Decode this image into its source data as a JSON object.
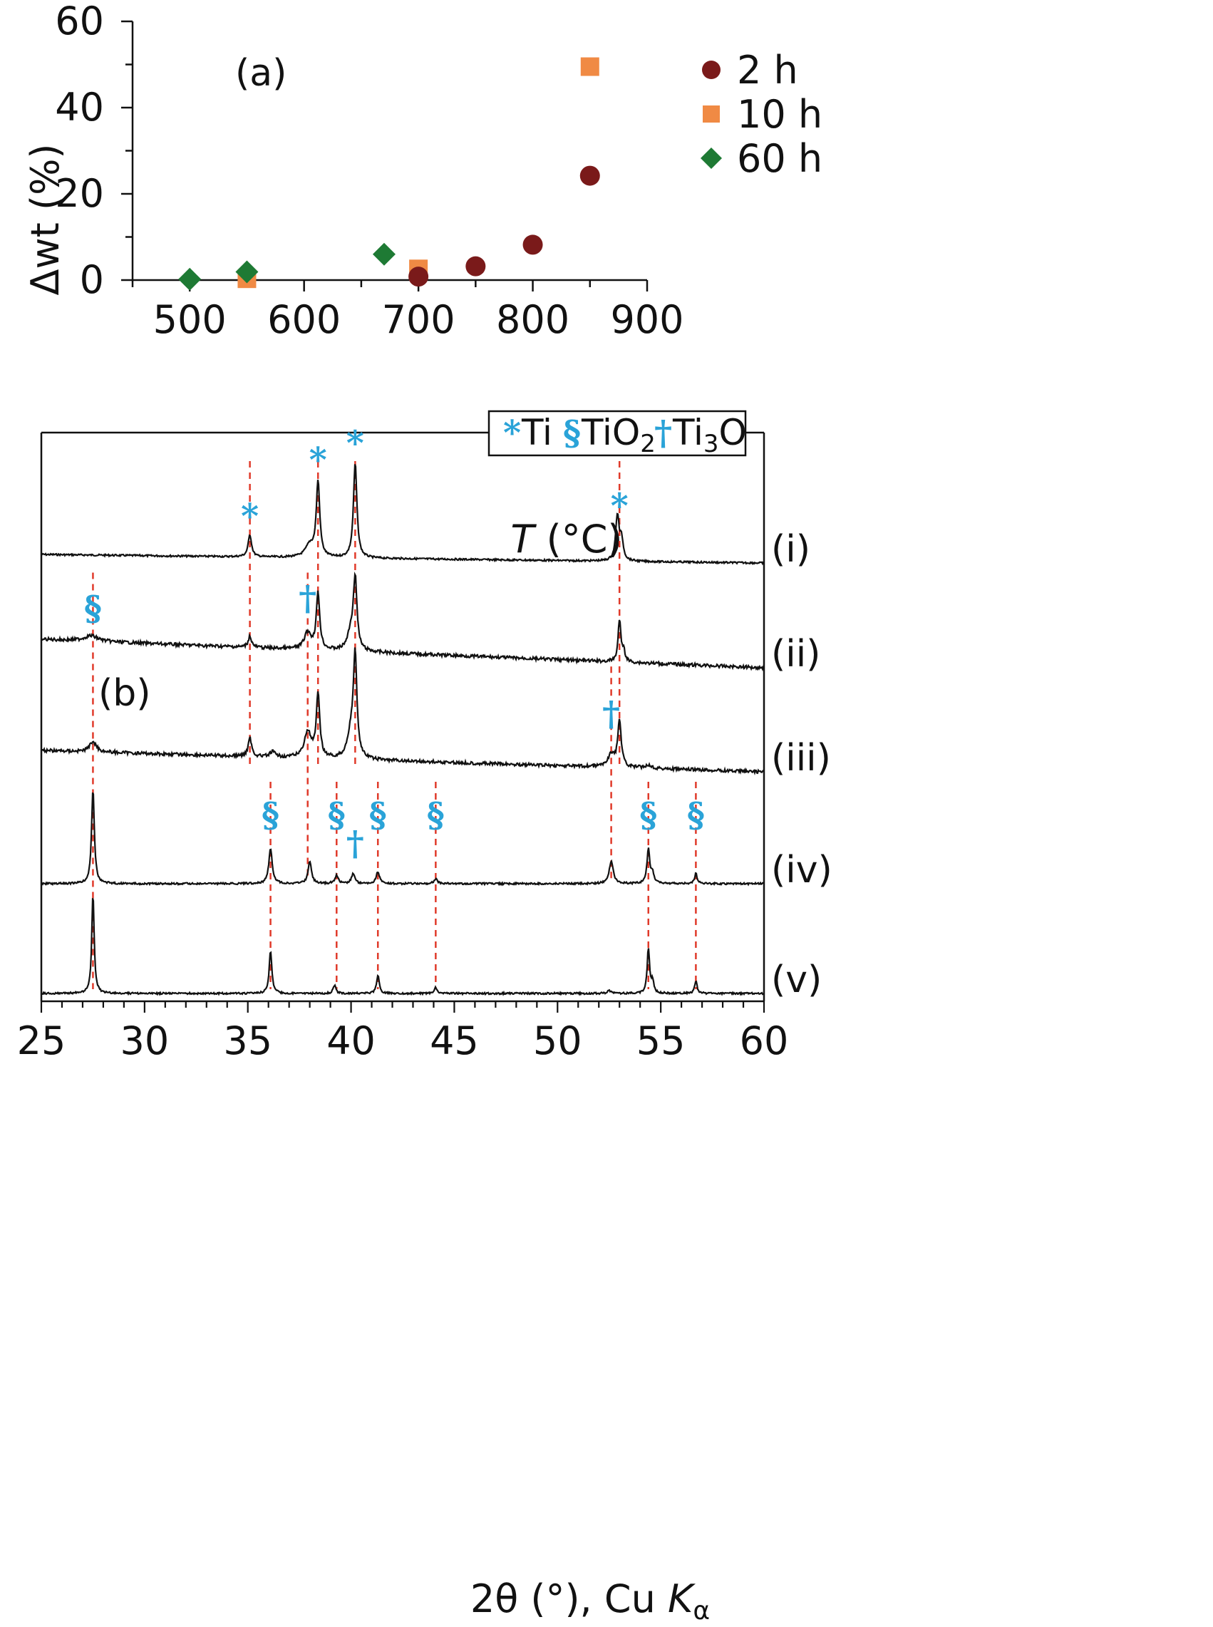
{
  "chart_data": [
    {
      "type": "scatter",
      "panel_label": "(a)",
      "xlabel": "T (°C)",
      "xlabel_var": "T",
      "xlabel_unit": " (°C)",
      "ylabel": "Δwt (%)",
      "xlim": [
        450,
        900
      ],
      "ylim": [
        0,
        60
      ],
      "xticks": [
        500,
        600,
        700,
        800,
        900
      ],
      "yticks": [
        0,
        20,
        40,
        60
      ],
      "legend_position": "right",
      "series": [
        {
          "name": "2 h",
          "marker": "circle",
          "color": "#7a1a1a",
          "points": [
            [
              700,
              0.8
            ],
            [
              750,
              3.2
            ],
            [
              800,
              8.2
            ],
            [
              850,
              24.2
            ]
          ]
        },
        {
          "name": "10 h",
          "marker": "square",
          "color": "#f08a44",
          "points": [
            [
              550,
              0.3
            ],
            [
              700,
              2.6
            ],
            [
              850,
              49.5
            ]
          ]
        },
        {
          "name": "60 h",
          "marker": "diamond",
          "color": "#1e7a34",
          "points": [
            [
              500,
              0.2
            ],
            [
              550,
              1.9
            ],
            [
              670,
              6.0
            ]
          ]
        }
      ]
    },
    {
      "type": "line",
      "panel_label": "(b)",
      "xlabel": "2θ (°), Cu Kα",
      "xlabel_main": "2θ (°), Cu ",
      "xlabel_k": "K",
      "xlabel_alpha": "α",
      "xlim": [
        25,
        60
      ],
      "xticks": [
        25,
        30,
        35,
        40,
        45,
        50,
        55,
        60
      ],
      "legend": [
        {
          "symbol": "*",
          "label": "Ti"
        },
        {
          "symbol": "§",
          "label": "TiO",
          "sub": "2"
        },
        {
          "symbol": "†",
          "label": "Ti",
          "sub": "3",
          "suffix": "O"
        }
      ],
      "marker_color": "#2aa3d8",
      "reference_line_color": "#e03a2a",
      "series": [
        {
          "name": "(i)",
          "baseline_start": 0.02,
          "baseline_end": 0.0,
          "peaks": [
            [
              35.1,
              0.22,
              0.1
            ],
            [
              38.0,
              0.12,
              0.25
            ],
            [
              38.4,
              0.75,
              0.1
            ],
            [
              40.2,
              0.95,
              0.1
            ],
            [
              52.9,
              0.45,
              0.1
            ],
            [
              53.1,
              0.2,
              0.1
            ]
          ]
        },
        {
          "name": "(ii)",
          "baseline_start": 0.1,
          "baseline_end": 0.0,
          "peaks": [
            [
              27.4,
              0.06,
              0.4
            ],
            [
              35.1,
              0.12,
              0.1
            ],
            [
              37.9,
              0.18,
              0.2
            ],
            [
              38.4,
              0.6,
              0.1
            ],
            [
              40.0,
              0.2,
              0.2
            ],
            [
              40.2,
              0.75,
              0.1
            ],
            [
              53.0,
              0.45,
              0.08
            ],
            [
              53.2,
              0.12,
              0.08
            ]
          ]
        },
        {
          "name": "(iii)",
          "baseline_start": 0.06,
          "baseline_end": 0.0,
          "peaks": [
            [
              27.5,
              0.1,
              0.2
            ],
            [
              35.1,
              0.18,
              0.1
            ],
            [
              36.2,
              0.05,
              0.15
            ],
            [
              37.9,
              0.25,
              0.2
            ],
            [
              38.4,
              0.6,
              0.1
            ],
            [
              40.0,
              0.25,
              0.2
            ],
            [
              40.2,
              0.95,
              0.1
            ],
            [
              52.6,
              0.12,
              0.2
            ],
            [
              53.0,
              0.45,
              0.1
            ],
            [
              54.4,
              0.03,
              0.2
            ]
          ]
        },
        {
          "name": "(iv)",
          "baseline_start": 0.0,
          "baseline_end": 0.0,
          "peaks": [
            [
              27.5,
              0.95,
              0.08
            ],
            [
              36.1,
              0.35,
              0.1
            ],
            [
              38.0,
              0.22,
              0.1
            ],
            [
              39.3,
              0.08,
              0.1
            ],
            [
              40.1,
              0.1,
              0.1
            ],
            [
              41.3,
              0.12,
              0.1
            ],
            [
              44.1,
              0.05,
              0.1
            ],
            [
              52.6,
              0.22,
              0.12
            ],
            [
              54.4,
              0.35,
              0.08
            ],
            [
              54.6,
              0.1,
              0.08
            ],
            [
              56.7,
              0.1,
              0.08
            ]
          ]
        },
        {
          "name": "(v)",
          "baseline_start": 0.0,
          "baseline_end": 0.0,
          "peaks": [
            [
              27.5,
              1.0,
              0.07
            ],
            [
              36.1,
              0.42,
              0.08
            ],
            [
              39.2,
              0.08,
              0.08
            ],
            [
              41.3,
              0.18,
              0.08
            ],
            [
              44.1,
              0.06,
              0.08
            ],
            [
              52.5,
              0.03,
              0.1
            ],
            [
              54.4,
              0.45,
              0.07
            ],
            [
              54.6,
              0.12,
              0.07
            ],
            [
              56.7,
              0.13,
              0.07
            ]
          ]
        }
      ],
      "reference_lines": [
        {
          "x": 27.5,
          "from": "(ii)",
          "to": "(v)"
        },
        {
          "x": 35.1,
          "from": "(i)",
          "to": "(iii)"
        },
        {
          "x": 37.9,
          "from": "(ii)",
          "to": "(iv)"
        },
        {
          "x": 38.4,
          "from": "(i)",
          "to": "(iii)"
        },
        {
          "x": 40.2,
          "from": "(i)",
          "to": "(iii)"
        },
        {
          "x": 53.0,
          "from": "(i)",
          "to": "(iii)"
        },
        {
          "x": 52.6,
          "from": "(iii)",
          "to": "(iv)"
        },
        {
          "x": 36.1,
          "from": "(iv)",
          "to": "(v)"
        },
        {
          "x": 39.3,
          "from": "(iv)",
          "to": "(v)"
        },
        {
          "x": 41.3,
          "from": "(iv)",
          "to": "(v)"
        },
        {
          "x": 44.1,
          "from": "(iv)",
          "to": "(v)"
        },
        {
          "x": 54.4,
          "from": "(iv)",
          "to": "(v)"
        },
        {
          "x": 56.7,
          "from": "(iv)",
          "to": "(v)"
        }
      ],
      "annotations": [
        {
          "symbol": "*",
          "x": 35.1,
          "row": "(i)"
        },
        {
          "symbol": "*",
          "x": 38.4,
          "row": "(i)"
        },
        {
          "symbol": "*",
          "x": 40.2,
          "row": "(i)"
        },
        {
          "symbol": "*",
          "x": 53.0,
          "row": "(i)"
        },
        {
          "symbol": "§",
          "x": 27.5,
          "row": "(ii)"
        },
        {
          "symbol": "†",
          "x": 37.9,
          "row": "(ii)"
        },
        {
          "symbol": "†",
          "x": 52.6,
          "row": "(iii)"
        },
        {
          "symbol": "§",
          "x": 36.1,
          "row": "(iv)"
        },
        {
          "symbol": "§",
          "x": 39.3,
          "row": "(iv)"
        },
        {
          "symbol": "†",
          "x": 40.2,
          "row": "(iv)"
        },
        {
          "symbol": "§",
          "x": 41.3,
          "row": "(iv)"
        },
        {
          "symbol": "§",
          "x": 44.1,
          "row": "(iv)"
        },
        {
          "symbol": "§",
          "x": 54.4,
          "row": "(iv)"
        },
        {
          "symbol": "§",
          "x": 56.7,
          "row": "(iv)"
        }
      ]
    }
  ]
}
